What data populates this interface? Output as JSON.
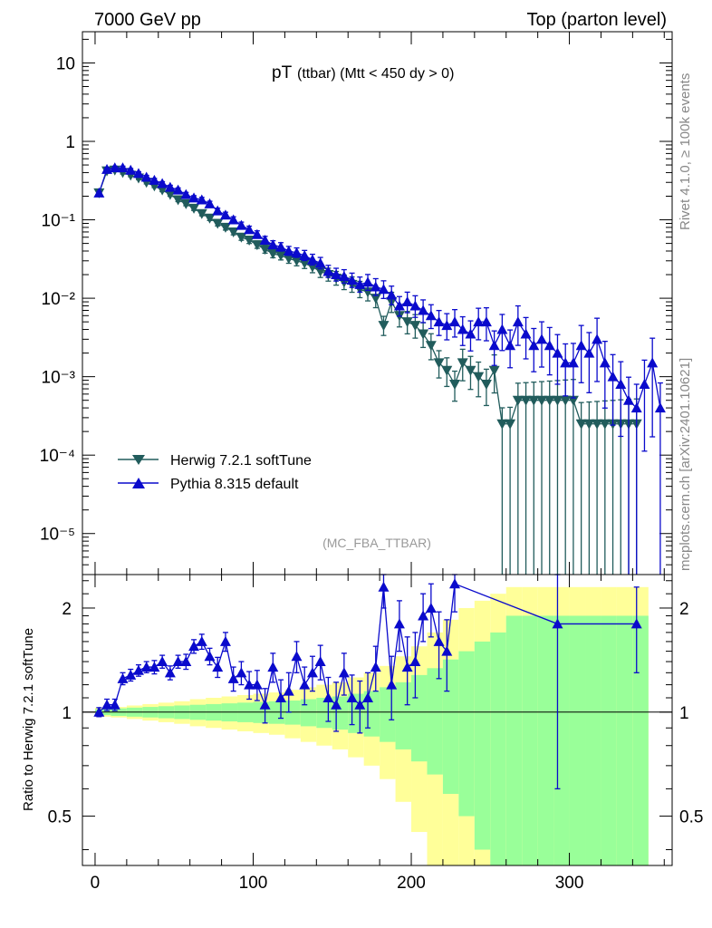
{
  "header": {
    "left": "7000 GeV pp",
    "right": "Top (parton level)"
  },
  "side_labels": {
    "rivet": "Rivet 4.1.0, ≥ 100k events",
    "mcplots": "mcplots.cern.ch [arXiv:2401.10621]"
  },
  "chart_data": [
    {
      "type": "line",
      "title_main": "pT",
      "title_sub": "(ttbar) (Mtt < 450 dy > 0)",
      "analysis": "(MC_FBA_TTBAR)",
      "yscale": "log",
      "xlim": [
        -8,
        365
      ],
      "ylim": [
        3e-06,
        25
      ],
      "ytick_labels": [
        "10",
        "1",
        "10⁻¹",
        "10⁻²",
        "10⁻³",
        "10⁻⁴",
        "10⁻⁵"
      ],
      "legend_position": "lower-left",
      "series": [
        {
          "name": "Herwig 7.2.1 softTune",
          "color": "#215c5c",
          "marker": "triangle-down",
          "x": [
            2.5,
            7.5,
            12.5,
            17.5,
            22.5,
            27.5,
            32.5,
            37.5,
            42.5,
            47.5,
            52.5,
            57.5,
            62.5,
            67.5,
            72.5,
            77.5,
            82.5,
            87.5,
            92.5,
            97.5,
            102.5,
            107.5,
            112.5,
            117.5,
            122.5,
            127.5,
            132.5,
            137.5,
            142.5,
            147.5,
            152.5,
            157.5,
            162.5,
            167.5,
            172.5,
            177.5,
            182.5,
            187.5,
            192.5,
            197.5,
            202.5,
            207.5,
            212.5,
            217.5,
            222.5,
            227.5,
            232.5,
            237.5,
            242.5,
            247.5,
            252.5,
            257.5,
            262.5,
            267.5,
            272.5,
            277.5,
            282.5,
            287.5,
            292.5,
            297.5,
            302.5,
            307.5,
            312.5,
            317.5,
            322.5,
            327.5,
            332.5,
            337.5,
            342.5
          ],
          "y": [
            0.22,
            0.42,
            0.43,
            0.4,
            0.37,
            0.34,
            0.3,
            0.27,
            0.24,
            0.21,
            0.18,
            0.16,
            0.14,
            0.12,
            0.105,
            0.09,
            0.08,
            0.07,
            0.06,
            0.055,
            0.048,
            0.042,
            0.037,
            0.035,
            0.032,
            0.03,
            0.028,
            0.025,
            0.022,
            0.02,
            0.018,
            0.016,
            0.015,
            0.013,
            0.012,
            0.01,
            0.0045,
            0.009,
            0.006,
            0.005,
            0.0045,
            0.0035,
            0.0025,
            0.0015,
            0.0012,
            0.0008,
            0.0015,
            0.0012,
            0.001,
            0.0008,
            0.0012,
            0.00025,
            0.00025,
            0.0005,
            0.0005,
            0.0005,
            0.0005,
            0.0005,
            0.0005,
            0.0005,
            0.0005,
            0.00025,
            0.00025,
            0.00025,
            0.00025,
            0.00025,
            0.00025,
            0.00025,
            0.00025
          ]
        },
        {
          "name": "Pythia 8.315 default",
          "color": "#0a0acc",
          "marker": "triangle-up",
          "x": [
            2.5,
            7.5,
            12.5,
            17.5,
            22.5,
            27.5,
            32.5,
            37.5,
            42.5,
            47.5,
            52.5,
            57.5,
            62.5,
            67.5,
            72.5,
            77.5,
            82.5,
            87.5,
            92.5,
            97.5,
            102.5,
            107.5,
            112.5,
            117.5,
            122.5,
            127.5,
            132.5,
            137.5,
            142.5,
            147.5,
            152.5,
            157.5,
            162.5,
            167.5,
            172.5,
            177.5,
            182.5,
            187.5,
            192.5,
            197.5,
            202.5,
            207.5,
            212.5,
            217.5,
            222.5,
            227.5,
            232.5,
            237.5,
            242.5,
            247.5,
            252.5,
            257.5,
            262.5,
            267.5,
            272.5,
            277.5,
            282.5,
            287.5,
            292.5,
            297.5,
            302.5,
            307.5,
            312.5,
            317.5,
            322.5,
            327.5,
            332.5,
            337.5,
            342.5,
            347.5,
            352.5,
            357.5
          ],
          "y": [
            0.22,
            0.44,
            0.46,
            0.46,
            0.43,
            0.39,
            0.35,
            0.32,
            0.29,
            0.26,
            0.24,
            0.21,
            0.19,
            0.18,
            0.16,
            0.13,
            0.115,
            0.1,
            0.085,
            0.075,
            0.065,
            0.055,
            0.048,
            0.045,
            0.04,
            0.038,
            0.035,
            0.031,
            0.028,
            0.022,
            0.02,
            0.019,
            0.017,
            0.015,
            0.016,
            0.014,
            0.013,
            0.011,
            0.008,
            0.009,
            0.008,
            0.007,
            0.006,
            0.005,
            0.0045,
            0.005,
            0.004,
            0.0035,
            0.005,
            0.005,
            0.0025,
            0.004,
            0.0025,
            0.005,
            0.0035,
            0.0025,
            0.003,
            0.0025,
            0.002,
            0.0015,
            0.0015,
            0.0025,
            0.002,
            0.003,
            0.0015,
            0.001,
            0.0008,
            0.0005,
            0.0004,
            0.0008,
            0.0015,
            0.0004
          ]
        }
      ]
    },
    {
      "type": "line",
      "ylabel": "Ratio to Herwig 7.2.1 softTune",
      "yscale": "log",
      "ylim": [
        0.36,
        2.5
      ],
      "xlim": [
        -8,
        365
      ],
      "xtick_labels": [
        "0",
        "100",
        "200",
        "300"
      ],
      "ytick_labels": [
        "2",
        "1",
        "0.5"
      ],
      "reference_line": 1,
      "band_x_edges": [
        0,
        10,
        20,
        30,
        40,
        50,
        60,
        70,
        80,
        90,
        100,
        110,
        120,
        130,
        140,
        150,
        160,
        170,
        180,
        190,
        200,
        210,
        220,
        230,
        240,
        250,
        260,
        270,
        280,
        290,
        300,
        310,
        320,
        330,
        340,
        350
      ],
      "band_inner_halfwidth": [
        0.02,
        0.025,
        0.03,
        0.035,
        0.04,
        0.045,
        0.05,
        0.055,
        0.06,
        0.065,
        0.07,
        0.075,
        0.08,
        0.09,
        0.1,
        0.11,
        0.13,
        0.15,
        0.18,
        0.22,
        0.28,
        0.34,
        0.42,
        0.5,
        0.6,
        0.7,
        0.9,
        0.9,
        0.9,
        0.9,
        0.9,
        0.9,
        0.9,
        0.9,
        0.9
      ],
      "band_outer_halfwidth": [
        0.03,
        0.035,
        0.045,
        0.055,
        0.065,
        0.075,
        0.09,
        0.1,
        0.11,
        0.12,
        0.13,
        0.14,
        0.16,
        0.18,
        0.2,
        0.22,
        0.26,
        0.3,
        0.36,
        0.45,
        0.55,
        0.7,
        0.85,
        1.0,
        1.1,
        1.2,
        1.3,
        1.3,
        1.3,
        1.3,
        1.3,
        1.3,
        1.3,
        1.3,
        1.3
      ],
      "series": [
        {
          "name": "Pythia 8.315 default / Herwig 7.2.1 softTune",
          "color": "#0a0acc",
          "marker": "triangle-up",
          "x": [
            2.5,
            7.5,
            12.5,
            17.5,
            22.5,
            27.5,
            32.5,
            37.5,
            42.5,
            47.5,
            52.5,
            57.5,
            62.5,
            67.5,
            72.5,
            77.5,
            82.5,
            87.5,
            92.5,
            97.5,
            102.5,
            107.5,
            112.5,
            117.5,
            122.5,
            127.5,
            132.5,
            137.5,
            142.5,
            147.5,
            152.5,
            157.5,
            162.5,
            167.5,
            172.5,
            177.5,
            182.5,
            187.5,
            192.5,
            197.5,
            202.5,
            207.5,
            212.5,
            217.5,
            222.5,
            227.5,
            292.5,
            342.5
          ],
          "y": [
            1.0,
            1.05,
            1.05,
            1.25,
            1.28,
            1.32,
            1.35,
            1.35,
            1.4,
            1.3,
            1.4,
            1.4,
            1.55,
            1.6,
            1.45,
            1.35,
            1.6,
            1.25,
            1.3,
            1.2,
            1.2,
            1.05,
            1.35,
            1.1,
            1.15,
            1.45,
            1.2,
            1.3,
            1.4,
            1.1,
            1.05,
            1.3,
            1.1,
            1.05,
            1.1,
            1.35,
            2.3,
            1.2,
            1.8,
            1.35,
            1.4,
            1.9,
            2.0,
            1.6,
            1.5,
            2.35,
            1.8,
            1.8
          ],
          "yerr": [
            0.03,
            0.04,
            0.04,
            0.05,
            0.05,
            0.05,
            0.05,
            0.06,
            0.06,
            0.06,
            0.06,
            0.07,
            0.07,
            0.08,
            0.08,
            0.09,
            0.1,
            0.1,
            0.1,
            0.11,
            0.12,
            0.12,
            0.13,
            0.14,
            0.15,
            0.15,
            0.15,
            0.15,
            0.16,
            0.16,
            0.17,
            0.18,
            0.18,
            0.18,
            0.2,
            0.2,
            0.3,
            0.25,
            0.3,
            0.3,
            0.3,
            0.3,
            0.35,
            0.35,
            0.35,
            0.4,
            1.2,
            0.5
          ]
        }
      ]
    }
  ]
}
